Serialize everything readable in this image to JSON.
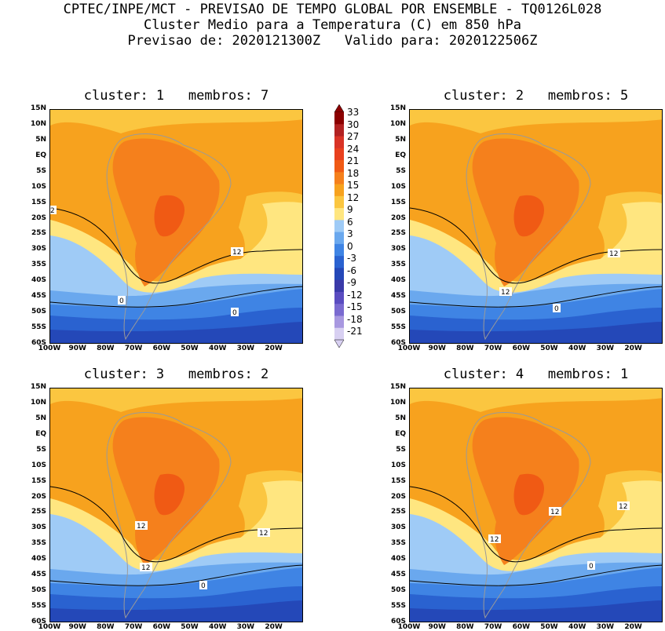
{
  "header": {
    "line1": "CPTEC/INPE/MCT - PREVISAO DE TEMPO GLOBAL POR ENSEMBLE - TQ0126L028",
    "line2": "Cluster Medio para a Temperatura (C) em 850 hPa",
    "line3": "Previsao de: 2020121300Z   Valido para: 2020122506Z"
  },
  "lat_labels": [
    "15N",
    "10N",
    "5N",
    "EQ",
    "5S",
    "10S",
    "15S",
    "20S",
    "25S",
    "30S",
    "35S",
    "40S",
    "45S",
    "50S",
    "55S",
    "60S"
  ],
  "lon_labels": [
    "100W",
    "90W",
    "80W",
    "70W",
    "60W",
    "50W",
    "40W",
    "30W",
    "20W"
  ],
  "colorbar": {
    "labels": [
      "33",
      "30",
      "27",
      "24",
      "21",
      "18",
      "15",
      "12",
      "9",
      "6",
      "3",
      "0",
      "-3",
      "-6",
      "-9",
      "-12",
      "-15",
      "-18",
      "-21"
    ],
    "colors": [
      "#8b0000",
      "#b22222",
      "#d93326",
      "#e8401e",
      "#f05a14",
      "#f5801c",
      "#f7a21e",
      "#fbc640",
      "#ffe680",
      "#9fcbf6",
      "#6aa8ee",
      "#3f84e4",
      "#2a62d0",
      "#2448b8",
      "#3a3aa8",
      "#5a4cc0",
      "#7a6ad0",
      "#a898e0",
      "#d8d0f2"
    ]
  },
  "panels": [
    {
      "title": "cluster: 1   membros: 7",
      "contour_labels": [
        "2",
        "12",
        "0",
        "0"
      ]
    },
    {
      "title": "cluster: 2   membros: 5",
      "contour_labels": [
        "12",
        "12",
        "0"
      ]
    },
    {
      "title": "cluster: 3   membros: 2",
      "contour_labels": [
        "12",
        "12",
        "12",
        "0"
      ]
    },
    {
      "title": "cluster: 4   membros: 1",
      "contour_labels": [
        "12",
        "12",
        "12",
        "0"
      ]
    }
  ]
}
